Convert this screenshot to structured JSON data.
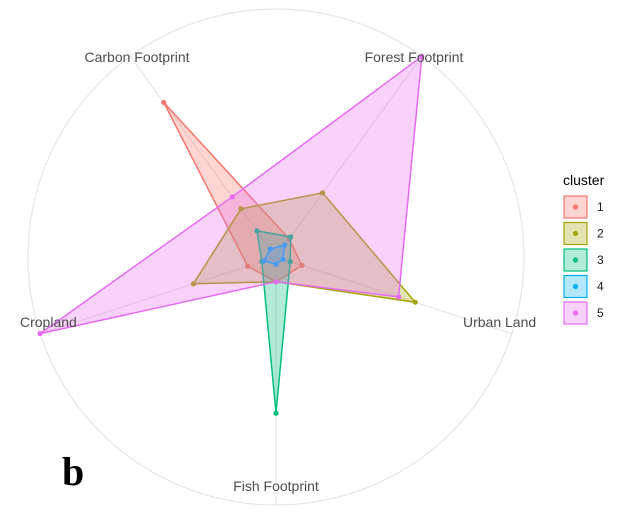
{
  "chart_data": {
    "type": "radar",
    "panel_label": "b",
    "axes": [
      "Forest Footprint",
      "Urban Land",
      "Fish Footprint",
      "Cropland",
      "Carbon Footprint"
    ],
    "rlim": [
      0,
      1
    ],
    "grid": true,
    "legend": {
      "title": "cluster",
      "position": "right"
    },
    "series": [
      {
        "name": "1",
        "color": "#F8766D",
        "values": [
          0.09,
          0.11,
          0.1,
          0.12,
          0.77
        ]
      },
      {
        "name": "2",
        "color": "#A3A500",
        "values": [
          0.32,
          0.59,
          0.1,
          0.35,
          0.24
        ]
      },
      {
        "name": "3",
        "color": "#00BF7D",
        "values": [
          0.1,
          0.06,
          0.63,
          0.06,
          0.13
        ]
      },
      {
        "name": "4",
        "color": "#00B0F6",
        "values": [
          0.06,
          0.03,
          0.03,
          0.05,
          0.04
        ]
      },
      {
        "name": "5",
        "color": "#E76BF3",
        "values": [
          1.0,
          0.52,
          0.1,
          1.0,
          0.3
        ]
      }
    ]
  }
}
